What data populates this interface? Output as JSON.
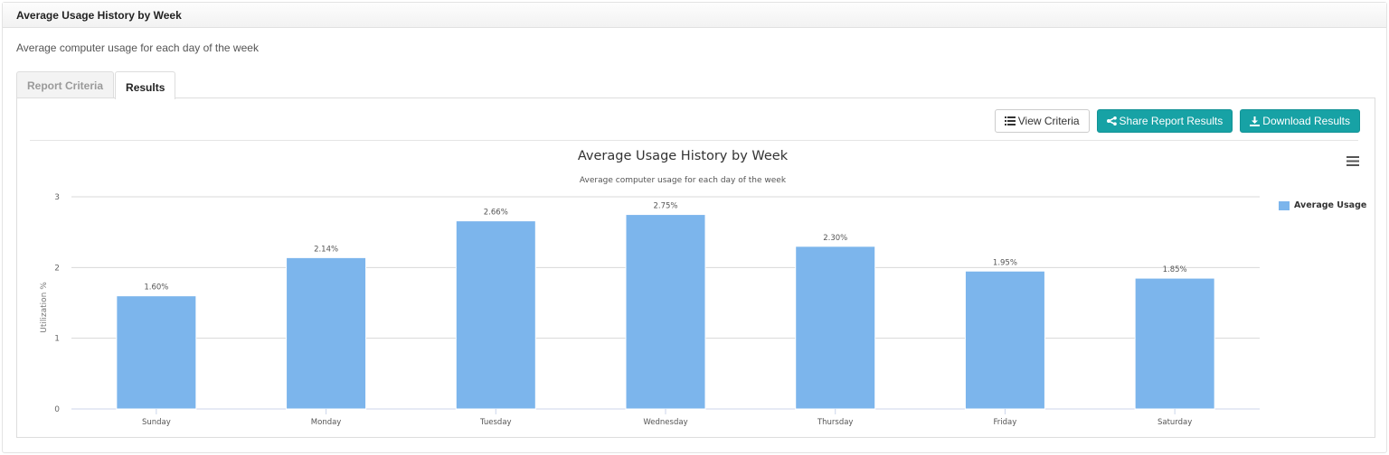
{
  "panel": {
    "title": "Average Usage History by Week",
    "description": "Average computer usage for each day of the week"
  },
  "tabs": [
    {
      "label": "Report Criteria",
      "active": false
    },
    {
      "label": "Results",
      "active": true
    }
  ],
  "toolbar": {
    "view_criteria_label": "View Criteria",
    "share_label": "Share Report Results",
    "download_label": "Download Results"
  },
  "colors": {
    "bar": "#7cb5ec",
    "primary_button": "#17a2a5",
    "gridline": "#d8d8d8"
  },
  "icons": {
    "view_criteria": "list-icon",
    "share": "share-icon",
    "download": "download-icon",
    "chart_menu": "hamburger-menu-icon"
  },
  "chart_data": {
    "type": "bar",
    "title": "Average Usage History by Week",
    "subtitle": "Average computer usage for each day of the week",
    "categories": [
      "Sunday",
      "Monday",
      "Tuesday",
      "Wednesday",
      "Thursday",
      "Friday",
      "Saturday"
    ],
    "series": [
      {
        "name": "Average Usage",
        "values": [
          1.6,
          2.14,
          2.66,
          2.75,
          2.3,
          1.95,
          1.85
        ],
        "labels": [
          "1.60%",
          "2.14%",
          "2.66%",
          "2.75%",
          "2.30%",
          "1.95%",
          "1.85%"
        ]
      }
    ],
    "xlabel": "",
    "ylabel": "Utilization %",
    "ylim": [
      0,
      3
    ],
    "yticks": [
      0,
      1,
      2,
      3
    ],
    "grid": true,
    "legend_position": "right-top"
  }
}
